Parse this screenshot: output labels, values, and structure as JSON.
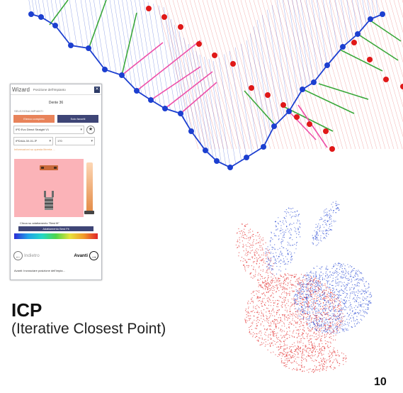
{
  "wizard": {
    "title": "Wizard",
    "subtitle": "Posizione dell'Impianto",
    "close_label": "✕",
    "tooth_label": "Dente 36",
    "section_label": "SELEZIONA IMPIANTI",
    "tab_complete": "Elenco completo",
    "tab_favorites": "Solo favoriti",
    "implant_model": "IPD Evo Direct Straight V1",
    "implant_code": "IPD/AA-3X-01-3º",
    "implant_size": "170",
    "info_link": "Informazioni su questa libreria ...",
    "fit_hint": "Clicca su adattamento \"Best fit\"",
    "fit_button": "Adattamento Best Fit",
    "back_label": "Indietro",
    "next_label": "Avanti",
    "status_text": "Avanti: Incrosciare posizione dell'impia..."
  },
  "caption": {
    "title": "ICP",
    "subtitle": "(Iterative Closest Point)"
  },
  "page_number": "10",
  "colors": {
    "model_points": "#1c3fd0",
    "scene_points": "#e01818",
    "correspondence_green": "#3aa83a",
    "correspondence_pink": "#ee4fa8",
    "wizard_accent": "#e8835a",
    "wizard_dark": "#3e4576"
  },
  "icons": [
    "close-icon",
    "dropdown-icon",
    "star-icon",
    "back-arrow-icon",
    "next-arrow-icon"
  ]
}
